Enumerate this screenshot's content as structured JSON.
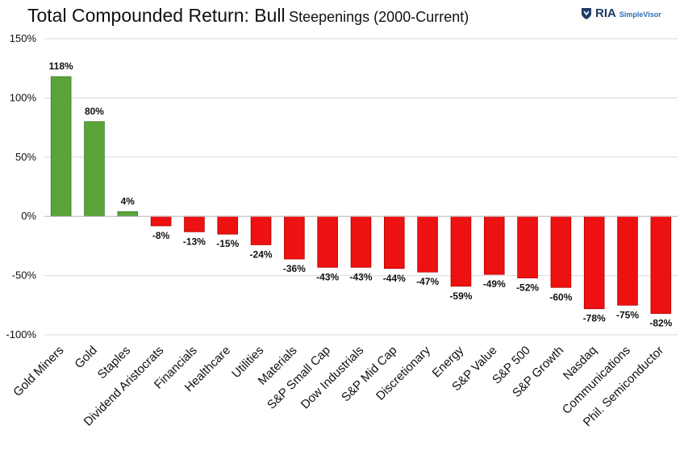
{
  "header": {
    "title_main": "Total Compounded Return: Bull",
    "title_sub": "Steepenings (2000-Current)"
  },
  "logo": {
    "brand": "RIA",
    "product": "SimpleVisor",
    "icon": "shield-logo-icon"
  },
  "colors": {
    "positive": "#5aa43a",
    "negative": "#ee1111",
    "grid": "#d9d9d9"
  },
  "chart_data": {
    "type": "bar",
    "title": "Total Compounded Return: Bull Steepenings (2000-Current)",
    "xlabel": "",
    "ylabel": "",
    "ylim": [
      -100,
      150
    ],
    "yticks": [
      150,
      100,
      50,
      0,
      -50,
      -100
    ],
    "ytick_labels": [
      "150%",
      "100%",
      "50%",
      "0%",
      "-50%",
      "-100%"
    ],
    "grid": true,
    "categories": [
      "Gold Miners",
      "Gold",
      "Staples",
      "Dividend Aristocrats",
      "Financials",
      "Healthcare",
      "Utilities",
      "Materials",
      "S&P Small Cap",
      "Dow Industrials",
      "S&P Mid Cap",
      "Discretionary",
      "Energy",
      "S&P Value",
      "S&P 500",
      "S&P Growth",
      "Nasdaq",
      "Communications",
      "Phil. Semiconductor"
    ],
    "values": [
      118,
      80,
      4,
      -8,
      -13,
      -15,
      -24,
      -36,
      -43,
      -43,
      -44,
      -47,
      -59,
      -49,
      -52,
      -60,
      -78,
      -75,
      -82
    ],
    "value_labels": [
      "118%",
      "80%",
      "4%",
      "-8%",
      "-13%",
      "-15%",
      "-24%",
      "-36%",
      "-43%",
      "-43%",
      "-44%",
      "-47%",
      "-59%",
      "-49%",
      "-52%",
      "-60%",
      "-78%",
      "-75%",
      "-82%"
    ]
  }
}
